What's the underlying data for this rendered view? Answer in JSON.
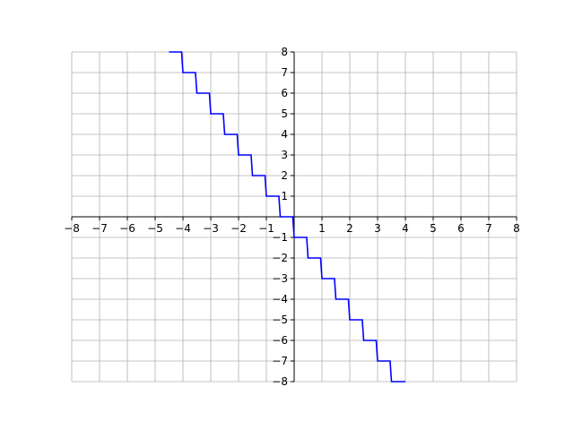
{
  "chart_data": {
    "type": "line",
    "title": "",
    "xlabel": "",
    "ylabel": "",
    "xlim": [
      -8,
      8
    ],
    "ylim": [
      -8,
      8
    ],
    "grid": true,
    "x_ticks": [
      -8,
      -7,
      -6,
      -5,
      -4,
      -3,
      -2,
      -1,
      1,
      2,
      3,
      4,
      5,
      6,
      7,
      8
    ],
    "y_ticks": [
      -8,
      -7,
      -6,
      -5,
      -4,
      -3,
      -2,
      -1,
      1,
      2,
      3,
      4,
      5,
      6,
      7,
      8
    ],
    "x_tick_labels": [
      "−8",
      "−7",
      "−6",
      "−5",
      "−4",
      "−3",
      "−2",
      "−1",
      "1",
      "2",
      "3",
      "4",
      "5",
      "6",
      "7",
      "8"
    ],
    "y_tick_labels": [
      "−8",
      "−7",
      "−6",
      "−5",
      "−4",
      "−3",
      "−2",
      "−1",
      "1",
      "2",
      "3",
      "4",
      "5",
      "6",
      "7",
      "8"
    ],
    "series": [
      {
        "color": "#0000ff",
        "points": [
          [
            -4.5,
            8
          ],
          [
            -4.05,
            8
          ],
          [
            -4.0,
            7
          ],
          [
            -3.55,
            7
          ],
          [
            -3.5,
            6
          ],
          [
            -3.05,
            6
          ],
          [
            -3.0,
            5
          ],
          [
            -2.55,
            5
          ],
          [
            -2.5,
            4
          ],
          [
            -2.05,
            4
          ],
          [
            -2.0,
            3
          ],
          [
            -1.55,
            3
          ],
          [
            -1.5,
            2
          ],
          [
            -1.05,
            2
          ],
          [
            -1.0,
            1
          ],
          [
            -0.55,
            1
          ],
          [
            -0.5,
            0
          ],
          [
            -0.05,
            0
          ],
          [
            0.0,
            -1
          ],
          [
            0.45,
            -1
          ],
          [
            0.5,
            -2
          ],
          [
            0.95,
            -2
          ],
          [
            1.0,
            -3
          ],
          [
            1.45,
            -3
          ],
          [
            1.5,
            -4
          ],
          [
            1.95,
            -4
          ],
          [
            2.0,
            -5
          ],
          [
            2.45,
            -5
          ],
          [
            2.5,
            -6
          ],
          [
            2.95,
            -6
          ],
          [
            3.0,
            -7
          ],
          [
            3.45,
            -7
          ],
          [
            3.5,
            -8
          ],
          [
            4.0,
            -8
          ]
        ]
      }
    ]
  },
  "colors": {
    "line": "#0000ff",
    "grid": "#b0b0b0",
    "axis": "#000000"
  }
}
